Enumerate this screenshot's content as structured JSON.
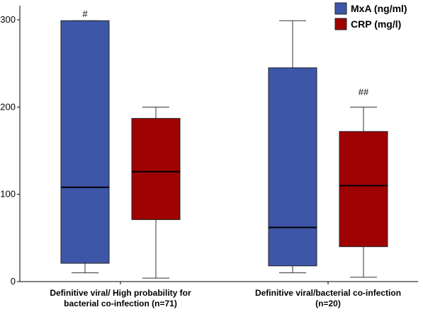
{
  "chart_data": {
    "type": "boxplot",
    "categories": [
      [
        "Definitive viral/ High probability for",
        "bacterial co-infection (n=71)"
      ],
      [
        "Definitive viral/bacterial co-infection",
        "(n=20)"
      ]
    ],
    "series": [
      {
        "name": "MxA (ng/ml)",
        "color": "#3d56a8",
        "boxes": [
          {
            "min": 10,
            "q1": 21,
            "median": 108,
            "q3": 299,
            "max": 299
          },
          {
            "min": 10,
            "q1": 18,
            "median": 62,
            "q3": 245,
            "max": 299
          }
        ]
      },
      {
        "name": "CRP (mg/l)",
        "color": "#9e0202",
        "boxes": [
          {
            "min": 4,
            "q1": 71,
            "median": 126,
            "q3": 187,
            "max": 200
          },
          {
            "min": 5,
            "q1": 40,
            "median": 110,
            "q3": 172,
            "max": 200
          }
        ]
      }
    ],
    "ylim": [
      0,
      300
    ],
    "yticks": [
      0,
      100,
      200,
      300
    ],
    "annotations": [
      {
        "text": "#",
        "series": 0,
        "category": 0
      },
      {
        "text": "##",
        "series": 1,
        "category": 1
      }
    ],
    "legend_position": "top-right",
    "grid": false
  }
}
